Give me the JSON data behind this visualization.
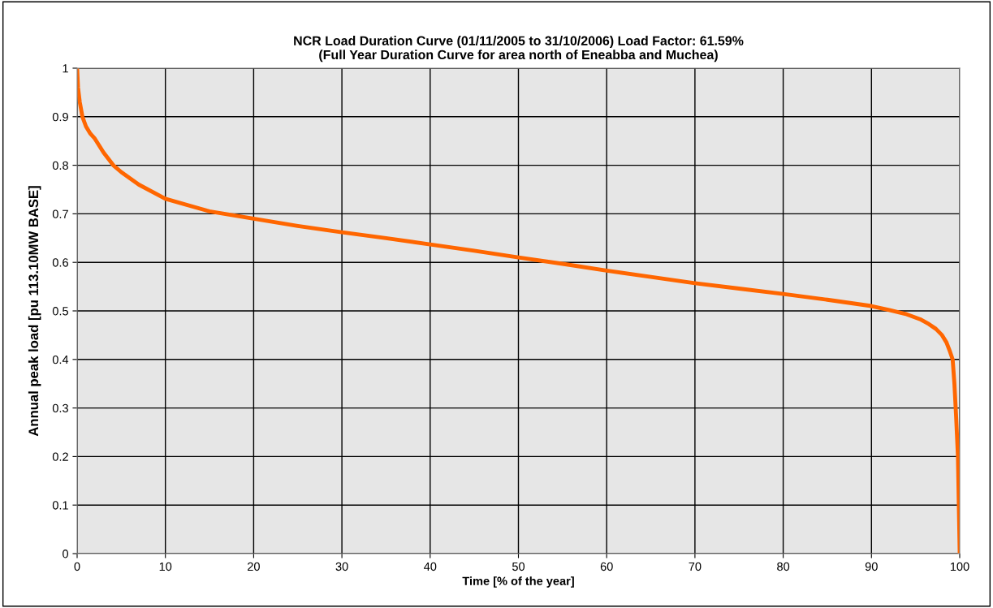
{
  "chart_data": {
    "type": "line",
    "title": "NCR Load Duration Curve (01/11/2005 to 31/10/2006) Load Factor: 61.59%\n(Full Year Duration Curve for area north of Eneabba and Muchea)",
    "xlabel": "Time [% of the year]",
    "ylabel": "Annual peak load [pu 113.10MW BASE]",
    "series": [
      {
        "color": "#ff6600",
        "x": [
          0,
          0.1,
          0.3,
          0.6,
          1,
          1.5,
          2,
          3,
          4.1,
          5,
          7,
          10,
          15,
          20,
          25,
          30,
          35,
          40,
          45,
          50,
          55,
          60,
          65,
          70,
          75,
          80,
          85,
          90,
          92,
          94,
          95.5,
          96.5,
          97.3,
          98,
          98.5,
          98.9,
          99.2,
          99.4,
          99.6,
          99.8,
          99.9,
          100
        ],
        "values": [
          1,
          0.96,
          0.93,
          0.9,
          0.88,
          0.865,
          0.855,
          0.826,
          0.8,
          0.786,
          0.76,
          0.731,
          0.705,
          0.69,
          0.675,
          0.662,
          0.65,
          0.637,
          0.624,
          0.61,
          0.597,
          0.583,
          0.57,
          0.557,
          0.546,
          0.535,
          0.523,
          0.51,
          0.502,
          0.493,
          0.483,
          0.473,
          0.463,
          0.45,
          0.435,
          0.416,
          0.4,
          0.35,
          0.28,
          0.2,
          0.1,
          0
        ]
      }
    ],
    "xlim": [
      0,
      100
    ],
    "xticks": [
      0,
      10,
      20,
      30,
      40,
      50,
      60,
      70,
      80,
      90,
      100
    ],
    "ylim": [
      0,
      1
    ],
    "yticks": [
      0,
      0.1,
      0.2,
      0.3,
      0.4,
      0.5,
      0.6,
      0.7,
      0.8,
      0.9,
      1
    ],
    "grid": true,
    "marker": "none",
    "line_style": "solid"
  }
}
